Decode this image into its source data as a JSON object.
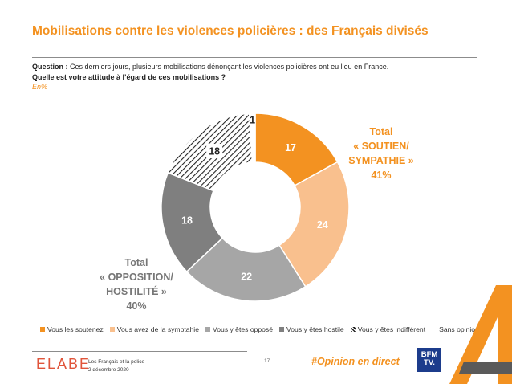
{
  "title": "Mobilisations contre les violences policières : des Français divisés",
  "question": {
    "label": "Question :",
    "line1": " Ces derniers jours, plusieurs mobilisations dénonçant les violences policières ont eu lieu en France.",
    "line2": "Quelle est votre attitude à l’égard de ces mobilisations ?",
    "unit": "En%"
  },
  "chart_data": {
    "type": "pie",
    "variant": "donut",
    "categories": [
      "Vous les soutenez",
      "Vous avez de la symptahie",
      "Vous y êtes opposé",
      "Vous y êtes hostile",
      "Vous y êtes indifférent",
      "Sans opinion"
    ],
    "values": [
      17,
      24,
      22,
      18,
      18,
      1
    ],
    "colors": [
      "#F39221",
      "#F9C08E",
      "#A6A6A6",
      "#7F7F7F",
      "hatched",
      "#FFFFFF"
    ],
    "label_colors": [
      "#ffffff",
      "#ffffff",
      "#ffffff",
      "#ffffff",
      "#222222",
      "#222222"
    ],
    "legend_position": "bottom",
    "annotations": [
      {
        "lines": [
          "Total",
          "« SOUTIEN/",
          "SYMPATHIE »",
          "41%"
        ],
        "color": "#F39221"
      },
      {
        "lines": [
          "Total",
          "« OPPOSITION/",
          "HOSTILITÉ »",
          "40%"
        ],
        "color": "#777777"
      }
    ]
  },
  "footer": {
    "logo": "ELABE",
    "line1": "Les Français et la police",
    "line2": "2 décembre 2020",
    "page": "17",
    "hashtag": "#Opinion en direct",
    "brand_line1": "BFM",
    "brand_line2": "TV."
  }
}
